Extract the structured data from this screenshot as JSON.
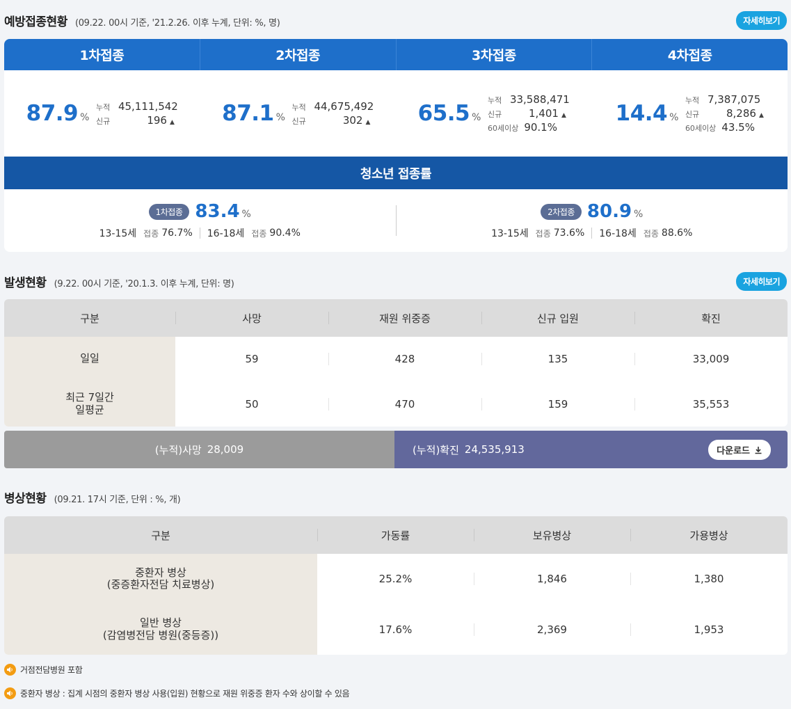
{
  "vaccination": {
    "title": "예방접종현황",
    "subtitle": "(09.22. 00시 기준, '21.2.26. 이후 누계, 단위: %, 명)",
    "detail_button": "자세히보기",
    "doses": [
      {
        "header": "1차접종",
        "rate": "87.9",
        "unit": "%",
        "stats": [
          {
            "label": "누적",
            "value": "45,111,542",
            "up": false
          },
          {
            "label": "신규",
            "value": "196",
            "up": true
          }
        ]
      },
      {
        "header": "2차접종",
        "rate": "87.1",
        "unit": "%",
        "stats": [
          {
            "label": "누적",
            "value": "44,675,492",
            "up": false
          },
          {
            "label": "신규",
            "value": "302",
            "up": true
          }
        ]
      },
      {
        "header": "3차접종",
        "rate": "65.5",
        "unit": "%",
        "stats": [
          {
            "label": "누적",
            "value": "33,588,471",
            "up": false
          },
          {
            "label": "신규",
            "value": "1,401",
            "up": true
          },
          {
            "label": "60세이상",
            "value": "90.1%",
            "up": false
          }
        ]
      },
      {
        "header": "4차접종",
        "rate": "14.4",
        "unit": "%",
        "stats": [
          {
            "label": "누적",
            "value": "7,387,075",
            "up": false
          },
          {
            "label": "신규",
            "value": "8,286",
            "up": true
          },
          {
            "label": "60세이상",
            "value": "43.5%",
            "up": false
          }
        ]
      }
    ],
    "teen": {
      "title": "청소년 접종률",
      "items": [
        {
          "badge": "1차접종",
          "rate": "83.4",
          "unit": "%",
          "groups": [
            {
              "age": "13-15세",
              "label": "접종",
              "value": "76.7%"
            },
            {
              "age": "16-18세",
              "label": "접종",
              "value": "90.4%"
            }
          ]
        },
        {
          "badge": "2차접종",
          "rate": "80.9",
          "unit": "%",
          "groups": [
            {
              "age": "13-15세",
              "label": "접종",
              "value": "73.6%"
            },
            {
              "age": "16-18세",
              "label": "접종",
              "value": "88.6%"
            }
          ]
        }
      ]
    }
  },
  "outbreak": {
    "title": "발생현황",
    "subtitle": "(9.22. 00시 기준, '20.1.3. 이후 누계, 단위: 명)",
    "detail_button": "자세히보기",
    "headers": [
      "구분",
      "사망",
      "재원 위중증",
      "신규 입원",
      "확진"
    ],
    "rows": [
      {
        "label": "일일",
        "values": [
          "59",
          "428",
          "135",
          "33,009"
        ]
      },
      {
        "label": "최근 7일간\n일평균",
        "values": [
          "50",
          "470",
          "159",
          "35,553"
        ]
      }
    ],
    "cumulative_death_label": "(누적)사망",
    "cumulative_death_value": "28,009",
    "cumulative_confirmed_label": "(누적)확진",
    "cumulative_confirmed_value": "24,535,913",
    "download_button": "다운로드",
    "colors": {
      "death_bar": "#9b9b9b",
      "confirmed_bar": "#62689c"
    }
  },
  "beds": {
    "title": "병상현황",
    "subtitle": "(09.21. 17시 기준, 단위 : %, 개)",
    "headers": [
      "구분",
      "가동률",
      "보유병상",
      "가용병상"
    ],
    "rows": [
      {
        "label": "중환자 병상\n(중증환자전담 치료병상)",
        "values": [
          "25.2%",
          "1,846",
          "1,380"
        ]
      },
      {
        "label": "일반 병상\n(감염병전담 병원(중등증))",
        "values": [
          "17.6%",
          "2,369",
          "1,953"
        ]
      }
    ]
  },
  "notes": [
    {
      "icon": "speaker-icon",
      "text": "거점전담병원 포함"
    },
    {
      "icon": "speaker-icon",
      "text": "중환자 병상 : 집계 시점의 중환자 병상 사용(입원) 현황으로 재원 위중증 환자 수와 상이할 수 있음"
    }
  ],
  "colors": {
    "primary_blue": "#1e6fca",
    "teen_bar": "#1557a5",
    "detail_button": "#1aa3e0",
    "note_icon": "#f39c12"
  }
}
